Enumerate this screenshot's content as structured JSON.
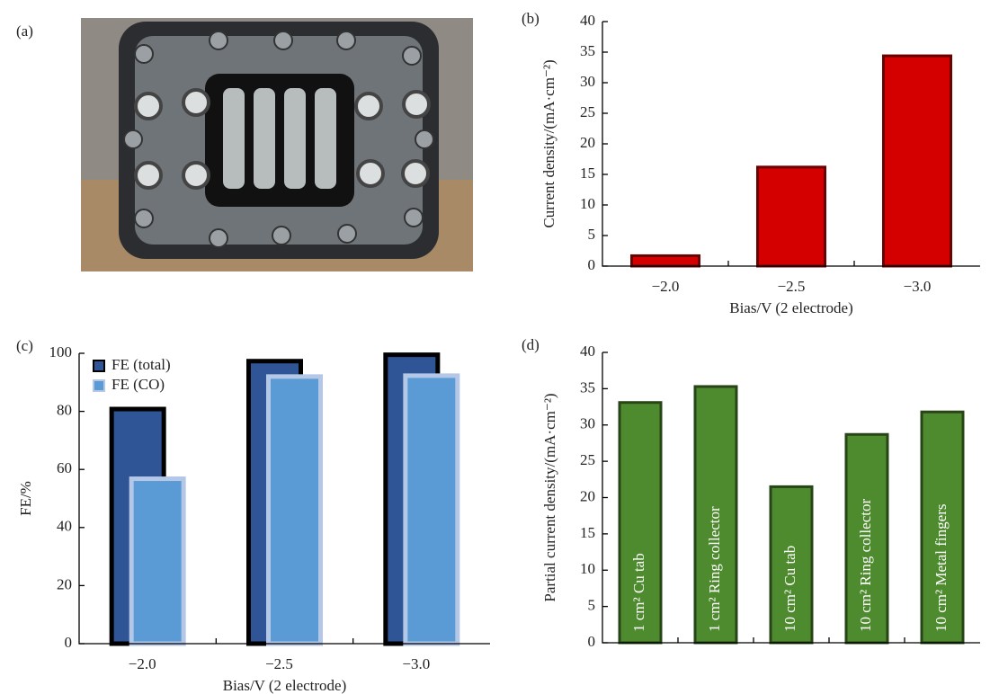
{
  "image_panel": {
    "panel_label": "(a)"
  },
  "chart_data": [
    {
      "type": "bar",
      "panel_label": "(b)",
      "categories": [
        "−2.0",
        "−2.5",
        "−3.0"
      ],
      "values": [
        1.7,
        16.2,
        34.4
      ],
      "color": "#d40000",
      "ylim": [
        0,
        40
      ],
      "yticks": [
        0,
        5,
        10,
        15,
        20,
        25,
        30,
        35,
        40
      ],
      "ylabel": "Current density/(mA·cm⁻²)",
      "xlabel": "Bias/V (2 electrode)"
    },
    {
      "type": "bar",
      "panel_label": "(c)",
      "categories": [
        "−2.0",
        "−2.5",
        "−3.0"
      ],
      "series": [
        {
          "name": "FE (total)",
          "color": "#2f5597",
          "values": [
            80.8,
            97.3,
            99.5
          ]
        },
        {
          "name": "FE (CO)",
          "color": "#5b9bd5",
          "values": [
            56.8,
            92.0,
            92.3
          ]
        }
      ],
      "ylim": [
        0,
        100
      ],
      "yticks": [
        0,
        20,
        40,
        60,
        80,
        100
      ],
      "ylabel": "FE/%",
      "xlabel": "Bias/V (2 electrode)",
      "legend": "top-left"
    },
    {
      "type": "bar",
      "panel_label": "(d)",
      "categories": [
        "1 cm² Cu tab",
        "1 cm² Ring collector",
        "10 cm² Cu tab",
        "10 cm² Ring collector",
        "10 cm² Metal fingers"
      ],
      "values": [
        33.1,
        35.3,
        21.5,
        28.7,
        31.8
      ],
      "color": "#4e8a2e",
      "ylim": [
        0,
        40
      ],
      "yticks": [
        0,
        5,
        10,
        15,
        20,
        25,
        30,
        35,
        40
      ],
      "ylabel": "Partial current density/(mA·cm⁻²)",
      "category_label_position": "inside-bar"
    }
  ]
}
